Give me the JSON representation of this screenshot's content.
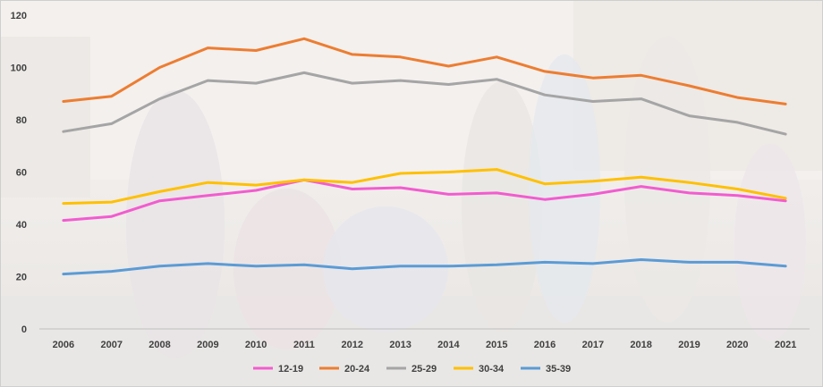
{
  "chart_data": {
    "type": "line",
    "x": [
      "2006",
      "2007",
      "2008",
      "2009",
      "2010",
      "2011",
      "2012",
      "2013",
      "2014",
      "2015",
      "2016",
      "2017",
      "2018",
      "2019",
      "2020",
      "2021"
    ],
    "ylim": [
      0,
      120
    ],
    "yticks": [
      0,
      20,
      40,
      60,
      80,
      100,
      120
    ],
    "grid": false,
    "legend_position": "bottom",
    "series": [
      {
        "name": "12-19",
        "color": "#f25ccf",
        "values": [
          41.5,
          43,
          49,
          51,
          53,
          57,
          53.5,
          54,
          51.5,
          52,
          49.5,
          51.5,
          54.5,
          52,
          51,
          49
        ]
      },
      {
        "name": "20-24",
        "color": "#ed7d31",
        "values": [
          87,
          89,
          100,
          107.5,
          106.5,
          111,
          105,
          104,
          100.5,
          104,
          98.5,
          96,
          97,
          93,
          88.5,
          86
        ]
      },
      {
        "name": "25-29",
        "color": "#a5a5a5",
        "values": [
          75.5,
          78.5,
          88,
          95,
          94,
          98,
          94,
          95,
          93.5,
          95.5,
          89.5,
          87,
          88,
          81.5,
          79,
          74.5
        ]
      },
      {
        "name": "30-34",
        "color": "#ffc000",
        "values": [
          48,
          48.5,
          52.5,
          56,
          55,
          57,
          56,
          59.5,
          60,
          61,
          55.5,
          56.5,
          58,
          56,
          53.5,
          50
        ]
      },
      {
        "name": "35-39",
        "color": "#5b9bd5",
        "values": [
          21,
          22,
          24,
          25,
          24,
          24.5,
          23,
          24,
          24,
          24.5,
          25.5,
          25,
          26.5,
          25.5,
          25.5,
          24
        ]
      }
    ]
  }
}
